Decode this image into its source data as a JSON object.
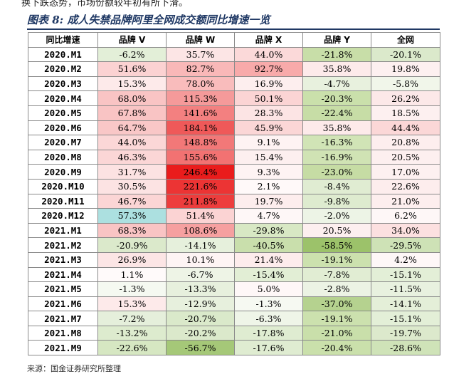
{
  "top_text": "换下跌态势，市场份额较年初有所下滑。",
  "title": "图表 8: 成人失禁品牌阿里全网成交额同比增速一览",
  "source": "来源：国金证券研究所整理",
  "table": {
    "headers": [
      "同比增速",
      "品牌 V",
      "品牌 W",
      "品牌 X",
      "品牌 Y",
      "全网"
    ],
    "rows": [
      {
        "label": "2020.M1",
        "cells": [
          {
            "text": "-6.2%",
            "color": "#e3efd8"
          },
          {
            "text": "35.7%",
            "color": "#fce5e5"
          },
          {
            "text": "44.0%",
            "color": "#fbd9d9"
          },
          {
            "text": "-21.8%",
            "color": "#c8dea8"
          },
          {
            "text": "-20.1%",
            "color": "#dbe9cb"
          }
        ]
      },
      {
        "label": "2020.M2",
        "cells": [
          {
            "text": "51.6%",
            "color": "#fbd2d2"
          },
          {
            "text": "82.7%",
            "color": "#f9b8b8"
          },
          {
            "text": "92.7%",
            "color": "#f8aaaa"
          },
          {
            "text": "35.8%",
            "color": "#fdeaea"
          },
          {
            "text": "19.8%",
            "color": "#fdf0f0"
          }
        ]
      },
      {
        "label": "2020.M3",
        "cells": [
          {
            "text": "15.3%",
            "color": "#fdeaea"
          },
          {
            "text": "78.0%",
            "color": "#f9bcbc"
          },
          {
            "text": "16.9%",
            "color": "#fdeeee"
          },
          {
            "text": "-4.7%",
            "color": "#e8f1de"
          },
          {
            "text": "-5.8%",
            "color": "#f1f6ea"
          }
        ]
      },
      {
        "label": "2020.M4",
        "cells": [
          {
            "text": "68.0%",
            "color": "#f9c4c4"
          },
          {
            "text": "115.3%",
            "color": "#f59a9a"
          },
          {
            "text": "50.1%",
            "color": "#fbd4d4"
          },
          {
            "text": "-20.3%",
            "color": "#cae0ab"
          },
          {
            "text": "26.2%",
            "color": "#fce8e8"
          }
        ]
      },
      {
        "label": "2020.M5",
        "cells": [
          {
            "text": "67.8%",
            "color": "#f9c4c4"
          },
          {
            "text": "141.6%",
            "color": "#f38080"
          },
          {
            "text": "28.3%",
            "color": "#fce4e4"
          },
          {
            "text": "-22.4%",
            "color": "#c7dda6"
          },
          {
            "text": "18.5%",
            "color": "#fdf0f0"
          }
        ]
      },
      {
        "label": "2020.M6",
        "cells": [
          {
            "text": "64.7%",
            "color": "#f9c7c7"
          },
          {
            "text": "184.1%",
            "color": "#ef5959"
          },
          {
            "text": "45.9%",
            "color": "#fbd6d6"
          },
          {
            "text": "35.8%",
            "color": "#fdeaea"
          },
          {
            "text": "44.4%",
            "color": "#fbd7d7"
          }
        ]
      },
      {
        "label": "2020.M7",
        "cells": [
          {
            "text": "44.0%",
            "color": "#fbd7d7"
          },
          {
            "text": "148.8%",
            "color": "#f27878"
          },
          {
            "text": "9.1%",
            "color": "#fef3f3"
          },
          {
            "text": "-16.3%",
            "color": "#d1e4b6"
          },
          {
            "text": "20.8%",
            "color": "#fdeeee"
          }
        ]
      },
      {
        "label": "2020.M8",
        "cells": [
          {
            "text": "46.3%",
            "color": "#fbd6d6"
          },
          {
            "text": "155.6%",
            "color": "#f27272"
          },
          {
            "text": "15.4%",
            "color": "#fdefef"
          },
          {
            "text": "-16.9%",
            "color": "#d0e3b4"
          },
          {
            "text": "20.5%",
            "color": "#fdefef"
          }
        ]
      },
      {
        "label": "2020.M9",
        "cells": [
          {
            "text": "31.7%",
            "color": "#fce2e2"
          },
          {
            "text": "246.4%",
            "color": "#ea1c1c"
          },
          {
            "text": "9.3%",
            "color": "#fef3f3"
          },
          {
            "text": "-23.0%",
            "color": "#c6dca4"
          },
          {
            "text": "17.0%",
            "color": "#fdf0f0"
          }
        ]
      },
      {
        "label": "2020.M10",
        "cells": [
          {
            "text": "30.5%",
            "color": "#fce3e3"
          },
          {
            "text": "221.6%",
            "color": "#ec3434"
          },
          {
            "text": "2.1%",
            "color": "#fff9f9"
          },
          {
            "text": "-8.4%",
            "color": "#e0ecd2"
          },
          {
            "text": "22.6%",
            "color": "#fdeded"
          }
        ]
      },
      {
        "label": "2020.M11",
        "cells": [
          {
            "text": "46.7%",
            "color": "#fbd5d5"
          },
          {
            "text": "211.8%",
            "color": "#ed3d3d"
          },
          {
            "text": "19.7%",
            "color": "#fdeded"
          },
          {
            "text": "-9.8%",
            "color": "#deebcf"
          },
          {
            "text": "21.0%",
            "color": "#fdeeee"
          }
        ]
      },
      {
        "label": "2020.M12",
        "cells": [
          {
            "text": "57.3%",
            "color": "#face0e0"
          },
          {
            "text": "51.4%",
            "color": "#fbd3d3"
          },
          {
            "text": "4.7%",
            "color": "#fef7f7"
          },
          {
            "text": "-2.0%",
            "color": "#edf4e6"
          },
          {
            "text": "6.2%",
            "color": "#fef7f7"
          }
        ]
      },
      {
        "label": "2021.M1",
        "cells": [
          {
            "text": "68.3%",
            "color": "#f9c4c4"
          },
          {
            "text": "108.6%",
            "color": "#f6a0a0"
          },
          {
            "text": "-29.8%",
            "color": "#d8e8c4"
          },
          {
            "text": "20.5%",
            "color": "#fdefef"
          },
          {
            "text": "34.0%",
            "color": "#fce0e0"
          }
        ]
      },
      {
        "label": "2021.M2",
        "cells": [
          {
            "text": "-20.9%",
            "color": "#dbe9cb"
          },
          {
            "text": "-14.1%",
            "color": "#e6f0dc"
          },
          {
            "text": "-40.5%",
            "color": "#c9dfac"
          },
          {
            "text": "-58.5%",
            "color": "#9cc26a"
          },
          {
            "text": "-29.5%",
            "color": "#cee2b6"
          }
        ]
      },
      {
        "label": "2021.M3",
        "cells": [
          {
            "text": "26.9%",
            "color": "#fce5e5"
          },
          {
            "text": "10.1%",
            "color": "#fef4f4"
          },
          {
            "text": "21.4%",
            "color": "#fdecec"
          },
          {
            "text": "-19.1%",
            "color": "#cce1ae"
          },
          {
            "text": "4.2%",
            "color": "#fef7f7"
          }
        ]
      },
      {
        "label": "2021.M4",
        "cells": [
          {
            "text": "1.1%",
            "color": "#fffafa"
          },
          {
            "text": "-6.7%",
            "color": "#eef4e6"
          },
          {
            "text": "-15.4%",
            "color": "#e2eed5"
          },
          {
            "text": "-7.8%",
            "color": "#e1edd3"
          },
          {
            "text": "-15.1%",
            "color": "#e3efd7"
          }
        ]
      },
      {
        "label": "2021.M5",
        "cells": [
          {
            "text": "-1.3%",
            "color": "#f5f9f1"
          },
          {
            "text": "-13.3%",
            "color": "#e7f0dd"
          },
          {
            "text": "5.0%",
            "color": "#fef7f7"
          },
          {
            "text": "-2.8%",
            "color": "#ecf3e4"
          },
          {
            "text": "-11.5%",
            "color": "#e8f1df"
          }
        ]
      },
      {
        "label": "2021.M6",
        "cells": [
          {
            "text": "15.3%",
            "color": "#fdeaea"
          },
          {
            "text": "-12.9%",
            "color": "#e7f0dd"
          },
          {
            "text": "-1.3%",
            "color": "#f6f9f2"
          },
          {
            "text": "-37.0%",
            "color": "#b5d28f"
          },
          {
            "text": "-14.1%",
            "color": "#e4efd8"
          }
        ]
      },
      {
        "label": "2021.M7",
        "cells": [
          {
            "text": "-7.2%",
            "color": "#e5efdb"
          },
          {
            "text": "-20.7%",
            "color": "#dae9ca"
          },
          {
            "text": "-6.3%",
            "color": "#eff5e8"
          },
          {
            "text": "-19.1%",
            "color": "#cce1ae"
          },
          {
            "text": "-15.1%",
            "color": "#e3efd7"
          }
        ]
      },
      {
        "label": "2021.M8",
        "cells": [
          {
            "text": "-13.2%",
            "color": "#ddebce"
          },
          {
            "text": "-20.2%",
            "color": "#dbe9cb"
          },
          {
            "text": "-17.8%",
            "color": "#dfecd1"
          },
          {
            "text": "-21.0%",
            "color": "#c9dfaa"
          },
          {
            "text": "-19.7%",
            "color": "#dce9cc"
          }
        ]
      },
      {
        "label": "2021.M9",
        "cells": [
          {
            "text": "-22.6%",
            "color": "#d6e7c2"
          },
          {
            "text": "-56.7%",
            "color": "#a5c878"
          },
          {
            "text": "-17.6%",
            "color": "#dfecd1"
          },
          {
            "text": "-20.4%",
            "color": "#cae0ab"
          },
          {
            "text": "-28.6%",
            "color": "#cfe3b8"
          }
        ]
      }
    ]
  }
}
